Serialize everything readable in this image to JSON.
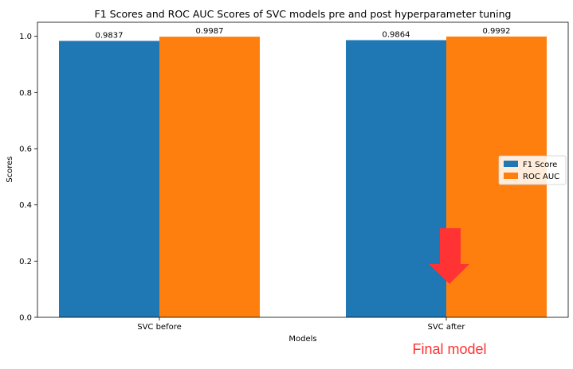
{
  "chart_data": {
    "type": "bar",
    "title": "F1 Scores and ROC AUC Scores of SVC models pre and post hyperparameter tuning",
    "xlabel": "Models",
    "ylabel": "Scores",
    "categories": [
      "SVC before",
      "SVC after"
    ],
    "series": [
      {
        "name": "F1 Score",
        "values": [
          0.9837,
          0.9864
        ],
        "color": "#1f77b4",
        "labels": [
          "0.9837",
          "0.9864"
        ]
      },
      {
        "name": "ROC AUC",
        "values": [
          0.9987,
          0.9992
        ],
        "color": "#ff7f0e",
        "labels": [
          "0.9987",
          "0.9992"
        ]
      }
    ],
    "ylim": [
      0,
      1.05
    ],
    "yticks": [
      0.0,
      0.2,
      0.4,
      0.6,
      0.8,
      1.0
    ],
    "ytick_labels": [
      "0.0",
      "0.2",
      "0.4",
      "0.6",
      "0.8",
      "1.0"
    ],
    "grid": false,
    "legend_position": "center-right"
  },
  "annotation": {
    "text": "Final model",
    "color": "#ff3333",
    "arrow_icon": "down-arrow-icon",
    "target_category": "SVC after"
  }
}
